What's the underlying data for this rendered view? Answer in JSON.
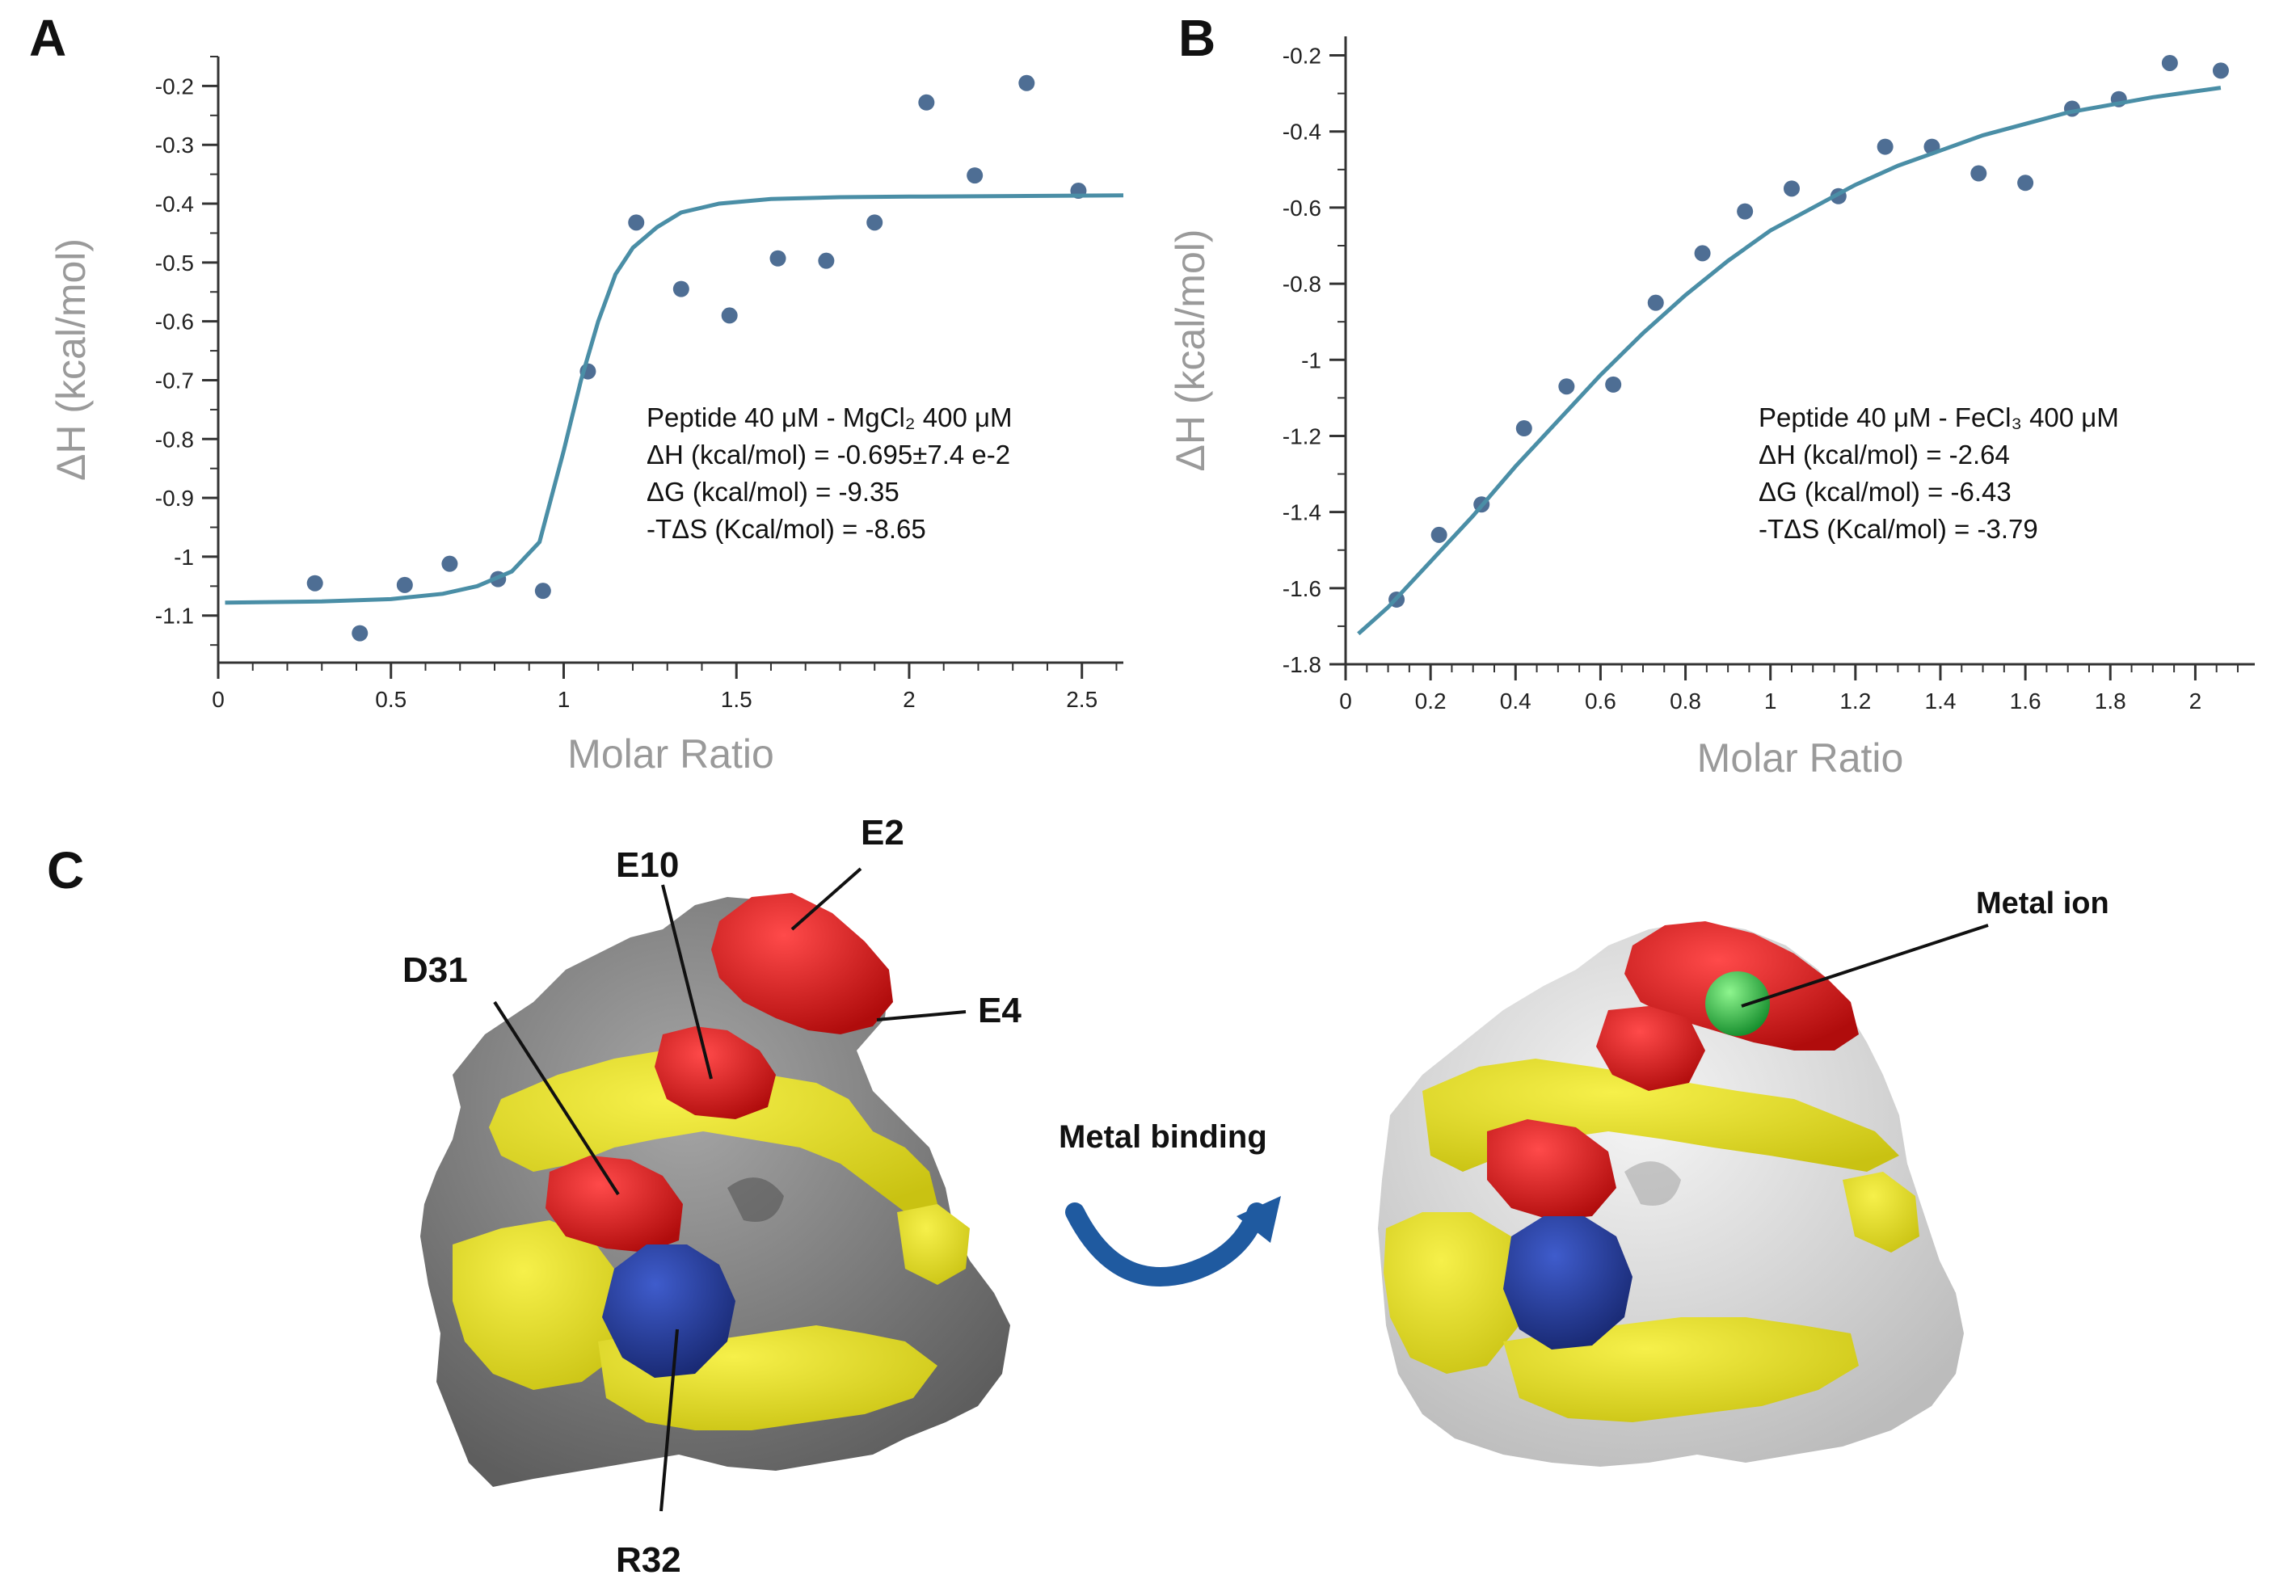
{
  "panels": {
    "a": "A",
    "b": "B",
    "c": "C"
  },
  "chart_data": [
    {
      "type": "scatter",
      "panel": "A",
      "xlabel": "Molar Ratio",
      "ylabel": "ΔH (kcal/mol)",
      "xlim": [
        0,
        2.62
      ],
      "ylim": [
        -1.18,
        -0.15
      ],
      "xticks": [
        0,
        0.5,
        1,
        1.5,
        2,
        2.5
      ],
      "xtick_labels": [
        "0",
        "0.5",
        "1",
        "1.5",
        "2",
        "2.5"
      ],
      "yticks": [
        -0.2,
        -0.3,
        -0.4,
        -0.5,
        -0.6,
        -0.7,
        -0.8,
        -0.9,
        -1,
        -1.1
      ],
      "ytick_labels": [
        "-0.2",
        "-0.3",
        "-0.4",
        "-0.5",
        "-0.6",
        "-0.7",
        "-0.8",
        "-0.9",
        "-1",
        "-1.1"
      ],
      "series": [
        {
          "kind": "points",
          "x": [
            0.28,
            0.41,
            0.54,
            0.67,
            0.81,
            0.94,
            1.07,
            1.21,
            1.34,
            1.48,
            1.62,
            1.76,
            1.9,
            2.05,
            2.19,
            2.34,
            2.49
          ],
          "y": [
            -1.045,
            -1.13,
            -1.048,
            -1.012,
            -1.038,
            -1.058,
            -0.685,
            -0.432,
            -0.545,
            -0.59,
            -0.493,
            -0.497,
            -0.432,
            -0.228,
            -0.352,
            -0.195,
            -0.378
          ]
        },
        {
          "kind": "fit",
          "x": [
            0.02,
            0.3,
            0.5,
            0.65,
            0.75,
            0.85,
            0.93,
            1.0,
            1.05,
            1.1,
            1.15,
            1.2,
            1.27,
            1.34,
            1.45,
            1.6,
            1.8,
            2.0,
            2.3,
            2.62
          ],
          "y": [
            -1.078,
            -1.076,
            -1.072,
            -1.063,
            -1.05,
            -1.025,
            -0.975,
            -0.82,
            -0.7,
            -0.6,
            -0.52,
            -0.475,
            -0.44,
            -0.415,
            -0.4,
            -0.392,
            -0.389,
            -0.388,
            -0.387,
            -0.386
          ]
        }
      ],
      "annotations": [
        "Peptide 40 μM - MgCl₂ 400 μM",
        "ΔH (kcal/mol) = -0.695±7.4 e-2",
        "ΔG (kcal/mol) = -9.35",
        "-TΔS (Kcal/mol) = -8.65"
      ],
      "colors": {
        "points": "#4e6e94",
        "fit": "#4a8ea6",
        "axes": "#333333",
        "axis_label": "#9a9a9a"
      }
    },
    {
      "type": "scatter",
      "panel": "B",
      "xlabel": "Molar Ratio",
      "ylabel": "ΔH (kcal/mol)",
      "xlim": [
        0,
        2.14
      ],
      "ylim": [
        -1.8,
        -0.15
      ],
      "xticks": [
        0,
        0.2,
        0.4,
        0.6,
        0.8,
        1,
        1.2,
        1.4,
        1.6,
        1.8,
        2
      ],
      "xtick_labels": [
        "0",
        "0.2",
        "0.4",
        "0.6",
        "0.8",
        "1",
        "1.2",
        "1.4",
        "1.6",
        "1.8",
        "2"
      ],
      "yticks": [
        -0.2,
        -0.4,
        -0.6,
        -0.8,
        -1,
        -1.2,
        -1.4,
        -1.6,
        -1.8
      ],
      "ytick_labels": [
        "-0.2",
        "-0.4",
        "-0.6",
        "-0.8",
        "-1",
        "-1.2",
        "-1.4",
        "-1.6",
        "-1.8"
      ],
      "series": [
        {
          "kind": "points",
          "x": [
            0.12,
            0.22,
            0.32,
            0.42,
            0.52,
            0.63,
            0.73,
            0.84,
            0.94,
            1.05,
            1.16,
            1.27,
            1.38,
            1.49,
            1.6,
            1.71,
            1.82,
            1.94,
            2.06
          ],
          "y": [
            -1.63,
            -1.46,
            -1.38,
            -1.18,
            -1.07,
            -1.065,
            -0.85,
            -0.72,
            -0.61,
            -0.55,
            -0.57,
            -0.44,
            -0.44,
            -0.51,
            -0.535,
            -0.34,
            -0.315,
            -0.22,
            -0.24
          ]
        },
        {
          "kind": "fit",
          "x": [
            0.03,
            0.1,
            0.2,
            0.3,
            0.4,
            0.5,
            0.6,
            0.7,
            0.8,
            0.9,
            1.0,
            1.1,
            1.2,
            1.3,
            1.4,
            1.5,
            1.6,
            1.7,
            1.8,
            1.9,
            2.06
          ],
          "y": [
            -1.72,
            -1.65,
            -1.53,
            -1.41,
            -1.28,
            -1.16,
            -1.04,
            -0.93,
            -0.83,
            -0.74,
            -0.66,
            -0.6,
            -0.54,
            -0.49,
            -0.45,
            -0.41,
            -0.38,
            -0.35,
            -0.33,
            -0.31,
            -0.285
          ]
        }
      ],
      "annotations": [
        "Peptide 40 μM - FeCl₃ 400 μM",
        "ΔH (kcal/mol) = -2.64",
        "ΔG (kcal/mol) = -6.43",
        "-TΔS (Kcal/mol) = -3.79"
      ],
      "colors": {
        "points": "#4e6e94",
        "fit": "#4a8ea6",
        "axes": "#333333",
        "axis_label": "#9a9a9a"
      }
    }
  ],
  "structure": {
    "residue_labels": {
      "e2": "E2",
      "e10": "E10",
      "d31": "D31",
      "e4": "E4",
      "r32": "R32"
    },
    "metal_ion_label": "Metal ion",
    "transition_label": "Metal binding",
    "colors": {
      "acidic": "#e31b1b",
      "hydrophobic": "#e6e01c",
      "basic": "#2a3f9e",
      "surface_left": "#8a8a8a",
      "surface_right": "#e4e4e4",
      "metal": "#2fb84a",
      "arrow": "#1f5aa0"
    }
  }
}
